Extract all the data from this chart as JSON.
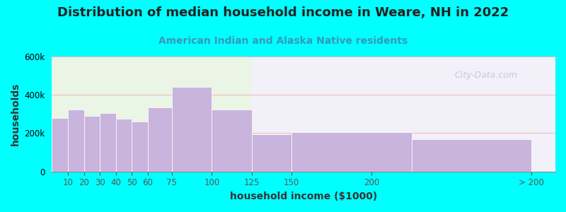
{
  "title": "Distribution of median household income in Weare, NH in 2022",
  "subtitle": "American Indian and Alaska Native residents",
  "xlabel": "household income ($1000)",
  "ylabel": "households",
  "background_color": "#00FFFF",
  "bar_color": "#c8b4dc",
  "bar_edge_color": "#ffffff",
  "title_fontsize": 13,
  "title_color": "#222222",
  "subtitle_fontsize": 10,
  "subtitle_color": "#3399bb",
  "axis_label_fontsize": 10,
  "tick_fontsize": 8.5,
  "watermark": "City-Data.com",
  "bar_lefts": [
    0,
    10,
    20,
    30,
    40,
    50,
    60,
    75,
    100,
    125,
    150,
    225
  ],
  "bar_widths": [
    10,
    10,
    10,
    10,
    10,
    10,
    15,
    25,
    25,
    25,
    75,
    75
  ],
  "bar_heights": [
    280000,
    325000,
    290000,
    305000,
    275000,
    260000,
    335000,
    440000,
    325000,
    195000,
    205000,
    170000
  ],
  "xtick_positions": [
    10,
    20,
    30,
    40,
    50,
    60,
    75,
    100,
    125,
    150,
    200,
    300
  ],
  "xtick_labels": [
    "10",
    "20",
    "30",
    "40",
    "50",
    "60",
    "75",
    "100",
    "125",
    "150",
    "200",
    "> 200"
  ],
  "ytick_positions": [
    0,
    200000,
    400000,
    600000
  ],
  "ytick_labels": [
    "0",
    "200k",
    "400k",
    "600k"
  ],
  "ylim": [
    0,
    600000
  ],
  "xlim": [
    0,
    315
  ],
  "grid_color": "#e8b8b8",
  "plot_bg_left_color": "#eaf5e6",
  "plot_bg_right_color": "#f2f0f8",
  "plot_bg_split": 125
}
